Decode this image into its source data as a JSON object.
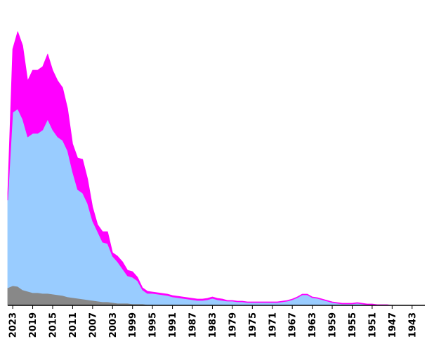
{
  "chart_data": {
    "type": "stacked-area",
    "x": [
      2024,
      2023,
      2022,
      2021,
      2020,
      2019,
      2018,
      2017,
      2016,
      2015,
      2014,
      2013,
      2012,
      2011,
      2010,
      2009,
      2008,
      2007,
      2006,
      2005,
      2004,
      2003,
      2002,
      2001,
      2000,
      1999,
      1998,
      1997,
      1996,
      1995,
      1994,
      1993,
      1992,
      1991,
      1990,
      1989,
      1988,
      1987,
      1986,
      1985,
      1984,
      1983,
      1982,
      1981,
      1980,
      1979,
      1978,
      1977,
      1976,
      1975,
      1974,
      1973,
      1972,
      1971,
      1970,
      1969,
      1968,
      1967,
      1966,
      1965,
      1964,
      1963,
      1962,
      1961,
      1960,
      1959,
      1958,
      1957,
      1956,
      1955,
      1954,
      1953,
      1952,
      1951,
      1950,
      1949,
      1948,
      1947
    ],
    "xlim": [
      2024,
      1941
    ],
    "xticks": [
      2023,
      2019,
      2015,
      2011,
      2007,
      2003,
      1999,
      1995,
      1991,
      1987,
      1983,
      1979,
      1975,
      1971,
      1967,
      1963,
      1959,
      1955,
      1951,
      1947,
      1943
    ],
    "ylim": [
      0,
      400
    ],
    "series": [
      {
        "color": "#888888",
        "values": [
          25,
          28,
          27,
          22,
          20,
          18,
          18,
          17,
          17,
          16,
          15,
          14,
          12,
          11,
          10,
          9,
          8,
          7,
          6,
          5,
          5,
          4,
          3,
          3,
          3,
          2,
          2,
          2,
          1,
          1,
          1,
          1,
          1,
          1,
          1,
          1,
          1,
          1,
          1,
          1,
          1,
          1,
          1,
          1,
          0,
          0,
          0,
          0,
          0,
          0,
          0,
          0,
          0,
          0,
          0,
          0,
          0,
          0,
          0,
          0,
          0,
          0,
          0,
          0,
          0,
          0,
          0,
          0,
          0,
          0,
          0,
          0,
          0,
          0,
          0,
          0,
          0,
          0
        ]
      },
      {
        "color": "#99ccff",
        "values": [
          125,
          247,
          253,
          243,
          220,
          227,
          227,
          233,
          248,
          234,
          225,
          221,
          208,
          179,
          155,
          151,
          137,
          113,
          99,
          85,
          83,
          66,
          59,
          49,
          39,
          38,
          33,
          20,
          16,
          16,
          15,
          14,
          13,
          11,
          10,
          9,
          8,
          7,
          6,
          6,
          7,
          9,
          7,
          6,
          6,
          6,
          5,
          5,
          4,
          4,
          4,
          4,
          4,
          4,
          4,
          5,
          6,
          8,
          11,
          15,
          15,
          11,
          10,
          8,
          6,
          4,
          3,
          2,
          2,
          2,
          3,
          2,
          1,
          1,
          0,
          0,
          0,
          0
        ]
      },
      {
        "color": "#ff00ff",
        "values": [
          10,
          90,
          110,
          105,
          80,
          90,
          90,
          90,
          93,
          85,
          80,
          75,
          60,
          40,
          45,
          48,
          35,
          20,
          10,
          15,
          17,
          5,
          8,
          10,
          8,
          8,
          5,
          3,
          3,
          2,
          2,
          2,
          2,
          2,
          2,
          2,
          2,
          2,
          2,
          2,
          2,
          2,
          2,
          2,
          1,
          1,
          1,
          1,
          1,
          1,
          1,
          1,
          1,
          1,
          1,
          1,
          1,
          1,
          1,
          1,
          1,
          1,
          1,
          1,
          1,
          1,
          1,
          1,
          1,
          1,
          1,
          1,
          1,
          1,
          1,
          1,
          1,
          0
        ]
      }
    ]
  }
}
